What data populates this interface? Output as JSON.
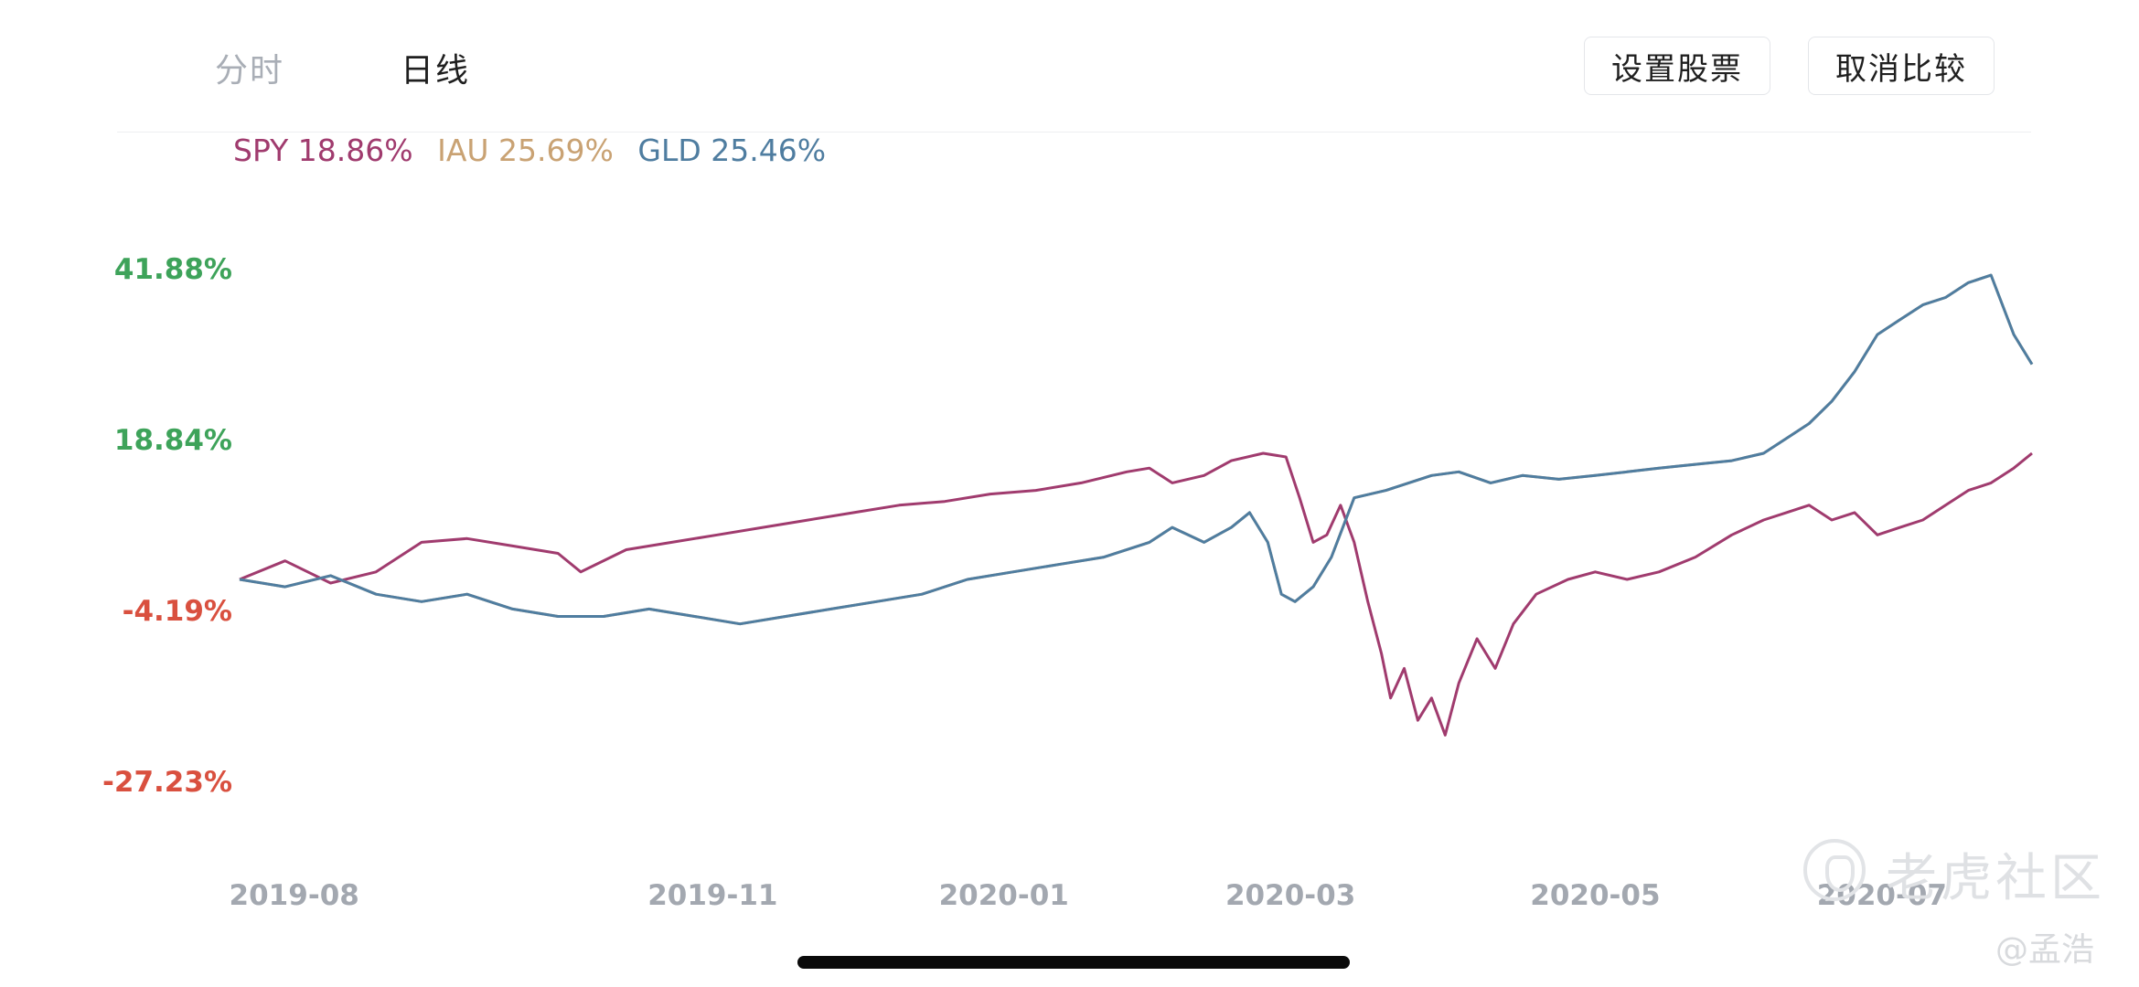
{
  "tabs": [
    {
      "label": "分时",
      "active": false
    },
    {
      "label": "日线",
      "active": true
    }
  ],
  "buttons": {
    "set_stock": "设置股票",
    "cancel_compare": "取消比较"
  },
  "legend": [
    {
      "label": "SPY 18.86%",
      "color": "#a03b6e"
    },
    {
      "label": "IAU 25.69%",
      "color": "#c9a273"
    },
    {
      "label": "GLD 25.46%",
      "color": "#4f7da0"
    }
  ],
  "watermark": {
    "text": "老虎社区",
    "user": "@孟浩"
  },
  "chart_data": {
    "type": "line",
    "y_axis": {
      "ticks": [
        {
          "label": "41.88%",
          "value": 41.88,
          "color": "#3ea35a"
        },
        {
          "label": "18.84%",
          "value": 18.84,
          "color": "#3ea35a"
        },
        {
          "label": "-4.19%",
          "value": -4.19,
          "color": "#d9503f"
        },
        {
          "label": "-27.23%",
          "value": -27.23,
          "color": "#d9503f"
        }
      ],
      "ylim": [
        -27.23,
        41.88
      ]
    },
    "x_axis": {
      "tick_labels": [
        "2019-08",
        "2019-11",
        "2020-01",
        "2020-03",
        "2020-05",
        "2020-07"
      ],
      "tick_positions_days": [
        12,
        104,
        168,
        231,
        298,
        361
      ],
      "xlim_days": [
        0,
        394
      ]
    },
    "series": [
      {
        "name": "SPY",
        "color": "#a03b6e",
        "points": [
          [
            0,
            0
          ],
          [
            10,
            2.5
          ],
          [
            20,
            -0.5
          ],
          [
            30,
            1
          ],
          [
            40,
            5
          ],
          [
            50,
            5.5
          ],
          [
            60,
            4.5
          ],
          [
            70,
            3.5
          ],
          [
            75,
            1
          ],
          [
            85,
            4
          ],
          [
            95,
            5
          ],
          [
            105,
            6
          ],
          [
            115,
            7
          ],
          [
            125,
            8
          ],
          [
            135,
            9
          ],
          [
            145,
            10
          ],
          [
            155,
            10.5
          ],
          [
            165,
            11.5
          ],
          [
            175,
            12
          ],
          [
            185,
            13
          ],
          [
            195,
            14.5
          ],
          [
            200,
            15
          ],
          [
            205,
            13
          ],
          [
            212,
            14
          ],
          [
            218,
            16
          ],
          [
            225,
            17
          ],
          [
            230,
            16.5
          ],
          [
            233,
            11
          ],
          [
            236,
            5
          ],
          [
            239,
            6
          ],
          [
            242,
            10
          ],
          [
            245,
            5
          ],
          [
            248,
            -3
          ],
          [
            251,
            -10
          ],
          [
            253,
            -16
          ],
          [
            256,
            -12
          ],
          [
            259,
            -19
          ],
          [
            262,
            -16
          ],
          [
            265,
            -21
          ],
          [
            268,
            -14
          ],
          [
            272,
            -8
          ],
          [
            276,
            -12
          ],
          [
            280,
            -6
          ],
          [
            285,
            -2
          ],
          [
            292,
            0
          ],
          [
            298,
            1
          ],
          [
            305,
            0
          ],
          [
            312,
            1
          ],
          [
            320,
            3
          ],
          [
            328,
            6
          ],
          [
            335,
            8
          ],
          [
            340,
            9
          ],
          [
            345,
            10
          ],
          [
            350,
            8
          ],
          [
            355,
            9
          ],
          [
            360,
            6
          ],
          [
            365,
            7
          ],
          [
            370,
            8
          ],
          [
            375,
            10
          ],
          [
            380,
            12
          ],
          [
            385,
            13
          ],
          [
            390,
            15
          ],
          [
            394,
            17
          ]
        ]
      },
      {
        "name": "IAU",
        "color": "#c9a273",
        "points": [
          [
            0,
            0
          ],
          [
            10,
            -1
          ],
          [
            20,
            0.5
          ],
          [
            30,
            -2
          ],
          [
            40,
            -3
          ],
          [
            50,
            -2
          ],
          [
            60,
            -4
          ],
          [
            70,
            -5
          ],
          [
            80,
            -5
          ],
          [
            90,
            -4
          ],
          [
            100,
            -5
          ],
          [
            110,
            -6
          ],
          [
            120,
            -5
          ],
          [
            130,
            -4
          ],
          [
            140,
            -3
          ],
          [
            150,
            -2
          ],
          [
            160,
            0
          ],
          [
            170,
            1
          ],
          [
            180,
            2
          ],
          [
            190,
            3
          ],
          [
            200,
            5
          ],
          [
            205,
            7
          ],
          [
            212,
            5
          ],
          [
            218,
            7
          ],
          [
            222,
            9
          ],
          [
            226,
            5
          ],
          [
            229,
            -2
          ],
          [
            232,
            -3
          ],
          [
            236,
            -1
          ],
          [
            240,
            3
          ],
          [
            245,
            11
          ],
          [
            252,
            12
          ],
          [
            257,
            13
          ],
          [
            262,
            14
          ],
          [
            268,
            14.5
          ],
          [
            275,
            13
          ],
          [
            282,
            14
          ],
          [
            290,
            13.5
          ],
          [
            298,
            14
          ],
          [
            305,
            14.5
          ],
          [
            312,
            15
          ],
          [
            320,
            15.5
          ],
          [
            328,
            16
          ],
          [
            335,
            17
          ],
          [
            340,
            19
          ],
          [
            345,
            21
          ],
          [
            350,
            24
          ],
          [
            355,
            28
          ],
          [
            360,
            33
          ],
          [
            365,
            35
          ],
          [
            370,
            37
          ],
          [
            375,
            38
          ],
          [
            380,
            40
          ],
          [
            385,
            41
          ],
          [
            390,
            33
          ],
          [
            394,
            29
          ]
        ]
      },
      {
        "name": "GLD",
        "color": "#4f7da0",
        "points": [
          [
            0,
            0
          ],
          [
            10,
            -1
          ],
          [
            20,
            0.5
          ],
          [
            30,
            -2
          ],
          [
            40,
            -3
          ],
          [
            50,
            -2
          ],
          [
            60,
            -4
          ],
          [
            70,
            -5
          ],
          [
            80,
            -5
          ],
          [
            90,
            -4
          ],
          [
            100,
            -5
          ],
          [
            110,
            -6
          ],
          [
            120,
            -5
          ],
          [
            130,
            -4
          ],
          [
            140,
            -3
          ],
          [
            150,
            -2
          ],
          [
            160,
            0
          ],
          [
            170,
            1
          ],
          [
            180,
            2
          ],
          [
            190,
            3
          ],
          [
            200,
            5
          ],
          [
            205,
            7
          ],
          [
            212,
            5
          ],
          [
            218,
            7
          ],
          [
            222,
            9
          ],
          [
            226,
            5
          ],
          [
            229,
            -2
          ],
          [
            232,
            -3
          ],
          [
            236,
            -1
          ],
          [
            240,
            3
          ],
          [
            245,
            11
          ],
          [
            252,
            12
          ],
          [
            257,
            13
          ],
          [
            262,
            14
          ],
          [
            268,
            14.5
          ],
          [
            275,
            13
          ],
          [
            282,
            14
          ],
          [
            290,
            13.5
          ],
          [
            298,
            14
          ],
          [
            305,
            14.5
          ],
          [
            312,
            15
          ],
          [
            320,
            15.5
          ],
          [
            328,
            16
          ],
          [
            335,
            17
          ],
          [
            340,
            19
          ],
          [
            345,
            21
          ],
          [
            350,
            24
          ],
          [
            355,
            28
          ],
          [
            360,
            33
          ],
          [
            365,
            35
          ],
          [
            370,
            37
          ],
          [
            375,
            38
          ],
          [
            380,
            40
          ],
          [
            385,
            41
          ],
          [
            390,
            33
          ],
          [
            394,
            29
          ]
        ]
      }
    ]
  }
}
